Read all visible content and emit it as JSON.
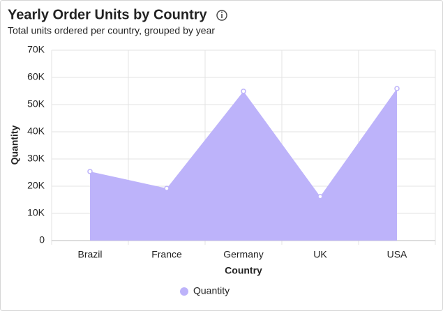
{
  "chart_data": {
    "type": "area",
    "title": "Yearly Order Units by Country",
    "subtitle": "Total units ordered per country, grouped by year",
    "x_label": "Country",
    "y_label": "Quantity",
    "categories": [
      "Brazil",
      "France",
      "Germany",
      "UK",
      "USA"
    ],
    "series": [
      {
        "name": "Quantity",
        "color": "#bdb3fa",
        "values": [
          25400,
          19200,
          54900,
          16200,
          55900
        ]
      }
    ],
    "ylim": [
      0,
      70000
    ],
    "yticks": [
      0,
      {
        "value": 10000,
        "label": "10K"
      },
      {
        "value": 20000,
        "label": "20K"
      },
      {
        "value": 30000,
        "label": "30K"
      },
      {
        "value": 40000,
        "label": "40K"
      },
      {
        "value": 50000,
        "label": "50K"
      },
      {
        "value": 60000,
        "label": "60K"
      },
      {
        "value": 70000,
        "label": "70K"
      }
    ],
    "grid": true,
    "legend": "bottom"
  }
}
